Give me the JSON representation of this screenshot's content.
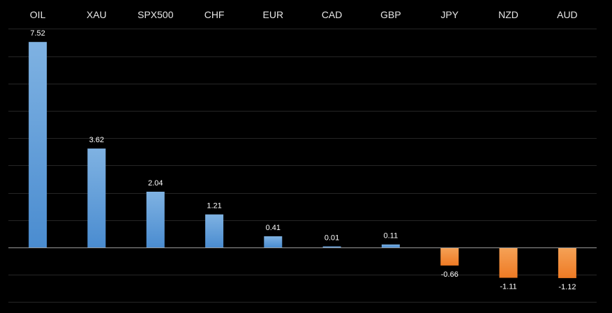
{
  "chart_data": {
    "type": "bar",
    "categories": [
      "OIL",
      "XAU",
      "SPX500",
      "CHF",
      "EUR",
      "CAD",
      "GBP",
      "JPY",
      "NZD",
      "AUD"
    ],
    "values": [
      7.52,
      3.62,
      2.04,
      1.21,
      0.41,
      0.01,
      0.11,
      -0.66,
      -1.11,
      -1.12
    ],
    "labels": [
      "7.52",
      "3.62",
      "2.04",
      "1.21",
      "0.41",
      "0.01",
      "0.11",
      "-0.66",
      "-1.11",
      "-1.12"
    ],
    "ylim": [
      -2,
      8
    ],
    "grid": true,
    "legend": "none",
    "colors": {
      "positive_top": "#7fb2e2",
      "positive_bottom": "#4a8cd0",
      "negative_top": "#f5a257",
      "negative_bottom": "#ee7a24",
      "background": "#000000"
    }
  }
}
